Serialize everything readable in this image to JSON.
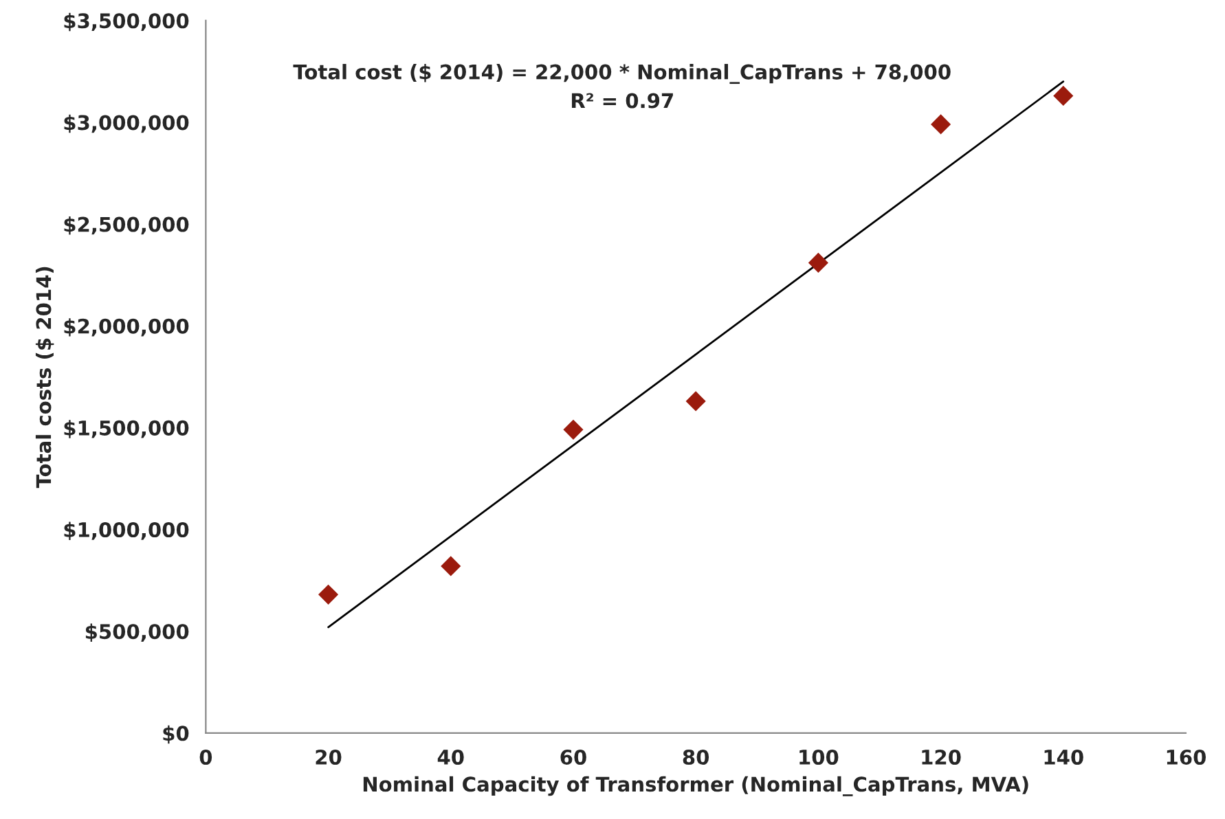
{
  "chart_data": {
    "type": "scatter",
    "xlabel": "Nominal Capacity of Transformer (Nominal_CapTrans, MVA)",
    "ylabel": "Total costs ($ 2014)",
    "series": [
      {
        "color": "#9b1b0d",
        "marker": "diamond",
        "x": [
          20,
          40,
          60,
          80,
          100,
          120,
          140
        ],
        "values": [
          680000,
          820000,
          1490000,
          1630000,
          2310000,
          2990000,
          3130000
        ]
      },
      {
        "type": "line",
        "color": "#000000",
        "marker": "none",
        "line_style": "solid",
        "x": [
          20,
          140
        ],
        "values": [
          520000,
          3200000
        ]
      }
    ],
    "xlim": [
      0,
      160
    ],
    "xticks": [
      0,
      20,
      40,
      60,
      80,
      100,
      120,
      140,
      160
    ],
    "ylim": [
      0,
      3500000
    ],
    "yticks": [
      {
        "value": 0,
        "label": "$0"
      },
      {
        "value": 500000,
        "label": "$500,000"
      },
      {
        "value": 1000000,
        "label": "$1,000,000"
      },
      {
        "value": 1500000,
        "label": "$1,500,000"
      },
      {
        "value": 2000000,
        "label": "$2,000,000"
      },
      {
        "value": 2500000,
        "label": "$2,500,000"
      },
      {
        "value": 3000000,
        "label": "$3,000,000"
      },
      {
        "value": 3500000,
        "label": "$3,500,000"
      }
    ],
    "grid": false,
    "legend": false,
    "annotations": [
      "Total cost ($ 2014) = 22,000 * Nominal_CapTrans + 78,000",
      "R² = 0.97"
    ]
  }
}
